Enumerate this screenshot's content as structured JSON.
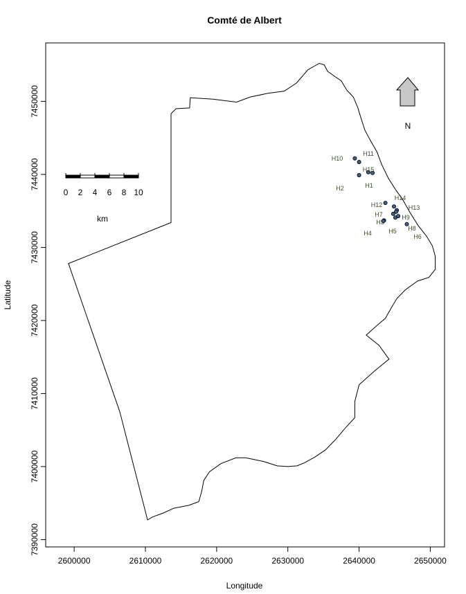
{
  "chart_data": {
    "type": "scatter",
    "title": "Comté de Albert",
    "xlabel": "Longitude",
    "ylabel": "Latitude",
    "xlim": [
      2596000,
      2652000
    ],
    "ylim": [
      7389000,
      7458000
    ],
    "x_ticks": [
      2600000,
      2610000,
      2620000,
      2630000,
      2640000,
      2650000
    ],
    "y_ticks": [
      7390000,
      7400000,
      7410000,
      7420000,
      7430000,
      7440000,
      7450000
    ],
    "x_tick_labels": [
      "2600000",
      "2610000",
      "2620000",
      "2630000",
      "2640000",
      "2650000"
    ],
    "y_tick_labels": [
      "7390000",
      "7400000",
      "7410000",
      "7420000",
      "7430000",
      "7440000",
      "7450000"
    ],
    "grid": false,
    "boundary": [
      [
        2599200,
        7427800
      ],
      [
        2613600,
        7433400
      ],
      [
        2613600,
        7448300
      ],
      [
        2614300,
        7449000
      ],
      [
        2616200,
        7449100
      ],
      [
        2616300,
        7450500
      ],
      [
        2619500,
        7450300
      ],
      [
        2622800,
        7449900
      ],
      [
        2624700,
        7450600
      ],
      [
        2627200,
        7451100
      ],
      [
        2629500,
        7451400
      ],
      [
        2631200,
        7452500
      ],
      [
        2632800,
        7454300
      ],
      [
        2634400,
        7455200
      ],
      [
        2635100,
        7455000
      ],
      [
        2635600,
        7454100
      ],
      [
        2636600,
        7453400
      ],
      [
        2637500,
        7452800
      ],
      [
        2638300,
        7451500
      ],
      [
        2639200,
        7450600
      ],
      [
        2639800,
        7449200
      ],
      [
        2640300,
        7447600
      ],
      [
        2640800,
        7446100
      ],
      [
        2641500,
        7444800
      ],
      [
        2642500,
        7443100
      ],
      [
        2643200,
        7441300
      ],
      [
        2644100,
        7439500
      ],
      [
        2645200,
        7437800
      ],
      [
        2646100,
        7436600
      ],
      [
        2647200,
        7434700
      ],
      [
        2648300,
        7433000
      ],
      [
        2649500,
        7431500
      ],
      [
        2650300,
        7430200
      ],
      [
        2650700,
        7428800
      ],
      [
        2650700,
        7427000
      ],
      [
        2649800,
        7425900
      ],
      [
        2648200,
        7425400
      ],
      [
        2646500,
        7424200
      ],
      [
        2645300,
        7423000
      ],
      [
        2644500,
        7421700
      ],
      [
        2643700,
        7420300
      ],
      [
        2642500,
        7419300
      ],
      [
        2641000,
        7418000
      ],
      [
        2642800,
        7416600
      ],
      [
        2644200,
        7414700
      ],
      [
        2642300,
        7413200
      ],
      [
        2640000,
        7411200
      ],
      [
        2639400,
        7408900
      ],
      [
        2639400,
        7406700
      ],
      [
        2638000,
        7405200
      ],
      [
        2636700,
        7403700
      ],
      [
        2635300,
        7402300
      ],
      [
        2633800,
        7401300
      ],
      [
        2632300,
        7400500
      ],
      [
        2631300,
        7400100
      ],
      [
        2630000,
        7400000
      ],
      [
        2628500,
        7400100
      ],
      [
        2626600,
        7400700
      ],
      [
        2624100,
        7401200
      ],
      [
        2622700,
        7401200
      ],
      [
        2620600,
        7400400
      ],
      [
        2619000,
        7399300
      ],
      [
        2618200,
        7398100
      ],
      [
        2617900,
        7396600
      ],
      [
        2617500,
        7395200
      ],
      [
        2616100,
        7394700
      ],
      [
        2614000,
        7394300
      ],
      [
        2612400,
        7393600
      ],
      [
        2611000,
        7393100
      ],
      [
        2610300,
        7392700
      ],
      [
        2606400,
        7407500
      ],
      [
        2599200,
        7427800
      ]
    ],
    "points": [
      {
        "label": "H1",
        "x": 2641900,
        "y": 7440200
      },
      {
        "label": "H2",
        "x": 2640000,
        "y": 7439900
      },
      {
        "label": "H3",
        "x": 2643500,
        "y": 7433700
      },
      {
        "label": "H4",
        "x": 2643400,
        "y": 7433600
      },
      {
        "label": "H5",
        "x": 2645100,
        "y": 7434100
      },
      {
        "label": "H6",
        "x": 2646700,
        "y": 7433200
      },
      {
        "label": "H7",
        "x": 2644800,
        "y": 7434600
      },
      {
        "label": "H8",
        "x": 2645500,
        "y": 7434300
      },
      {
        "label": "H9",
        "x": 2645300,
        "y": 7435100
      },
      {
        "label": "H10",
        "x": 2639400,
        "y": 7442200
      },
      {
        "label": "H11",
        "x": 2640000,
        "y": 7441700
      },
      {
        "label": "H12",
        "x": 2643700,
        "y": 7436100
      },
      {
        "label": "H13",
        "x": 2645200,
        "y": 7434900
      },
      {
        "label": "H14",
        "x": 2644900,
        "y": 7435600
      },
      {
        "label": "H15",
        "x": 2641300,
        "y": 7440300
      }
    ],
    "label_offsets_note": "",
    "scale_bar": {
      "ticks": [
        "0",
        "2",
        "4",
        "6",
        "8",
        "10"
      ],
      "unit": "km"
    },
    "north_arrow": {
      "label": "N"
    },
    "colors": {
      "point_fill": "#3a5f8f",
      "point_stroke": "#000000",
      "label": "#3d4a2a",
      "arrow": "#c8c8c8"
    }
  }
}
